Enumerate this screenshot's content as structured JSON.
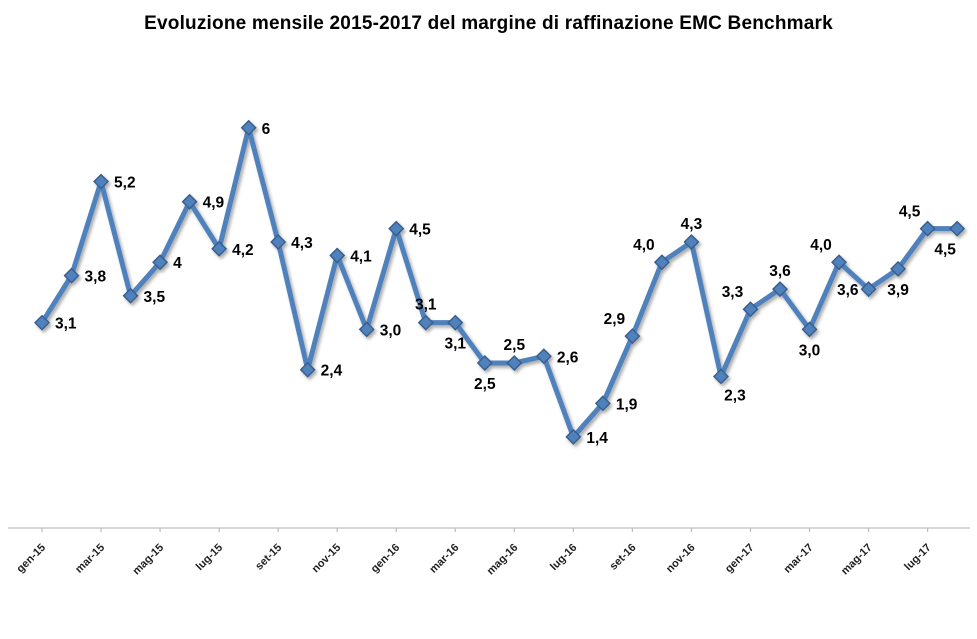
{
  "chart_data": {
    "type": "line",
    "title": "Evoluzione mensile 2015-2017 del margine di raffinazione EMC Benchmark",
    "x": [
      "gen-15",
      "feb-15",
      "mar-15",
      "apr-15",
      "mag-15",
      "giu-15",
      "lug-15",
      "ago-15",
      "set-15",
      "ott-15",
      "nov-15",
      "dic-15",
      "gen-16",
      "feb-16",
      "mar-16",
      "apr-16",
      "mag-16",
      "giu-16",
      "lug-16",
      "ago-16",
      "set-16",
      "ott-16",
      "nov-16",
      "dic-16",
      "gen-17",
      "feb-17",
      "mar-17",
      "apr-17",
      "mag-17",
      "giu-17",
      "lug-17",
      "ago-17"
    ],
    "values": [
      3.1,
      3.8,
      5.2,
      3.5,
      4,
      4.9,
      4.2,
      6,
      4.3,
      2.4,
      4.1,
      3.0,
      4.5,
      3.1,
      3.1,
      2.5,
      2.5,
      2.6,
      1.4,
      1.9,
      2.9,
      4.0,
      4.3,
      2.3,
      3.3,
      3.6,
      3.0,
      4.0,
      3.6,
      3.9,
      4.5,
      4.5
    ],
    "point_labels": [
      "3,1",
      "3,8",
      "5,2",
      "3,5",
      "4",
      "4,9",
      "4,2",
      "6",
      "4,3",
      "2,4",
      "4,1",
      "3,0",
      "4,5",
      "3,1",
      "3,1",
      "2,5",
      "2,5",
      "2,6",
      "1,4",
      "1,9",
      "2,9",
      "4,0",
      "4,3",
      "2,3",
      "3,3",
      "3,6",
      "3,0",
      "4,0",
      "3,6",
      "3,9",
      "4,5",
      "4,5"
    ],
    "point_label_positions": [
      "r",
      "r",
      "r",
      "r",
      "r",
      "r",
      "r",
      "r",
      "r",
      "r",
      "r",
      "r",
      "r",
      "a",
      "b",
      "b",
      "a",
      "r",
      "r",
      "r",
      "al",
      "al",
      "a",
      "br",
      "al",
      "a",
      "b",
      "al",
      "l",
      "b",
      "al",
      "bl"
    ],
    "x_tick_labels": [
      "gen-15",
      "mar-15",
      "mag-15",
      "lug-15",
      "set-15",
      "nov-15",
      "gen-16",
      "mar-16",
      "mag-16",
      "lug-16",
      "set-16",
      "nov-16",
      "gen-17",
      "mar-17",
      "mag-17",
      "lug-17"
    ],
    "ylim": [
      0,
      7
    ],
    "grid": false,
    "legend": false,
    "styles": {
      "line_color": "#4F81BD",
      "marker": "diamond",
      "marker_fill": "#4F81BD",
      "marker_edge": "#385D8A",
      "axis_line_color": "#BFBFBF",
      "data_label_color": "#000000",
      "tick_label_color": "#1F1F1F",
      "title_color": "#000000"
    }
  }
}
